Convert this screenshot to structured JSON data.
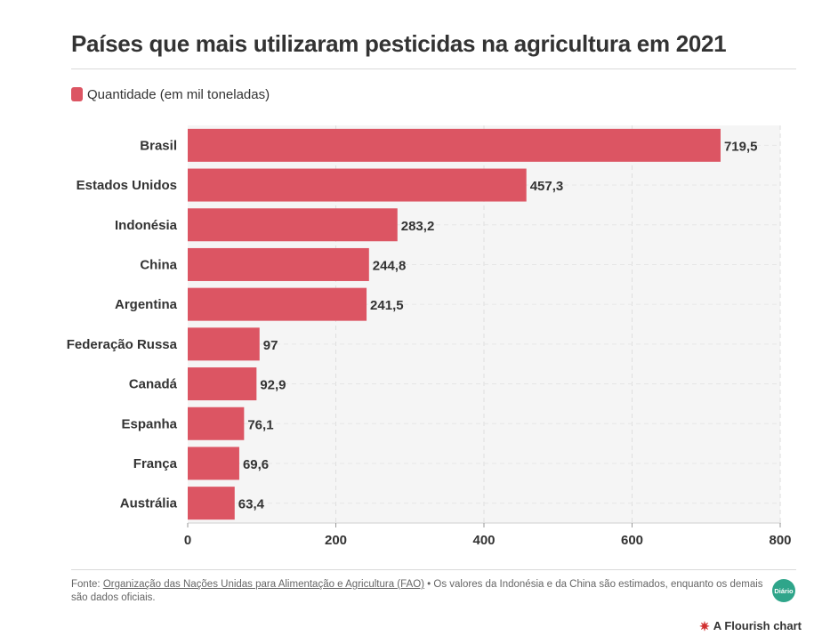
{
  "chart_data": {
    "type": "bar",
    "orientation": "horizontal",
    "title": "Países que mais utilizaram pesticidas na agricultura em 2021",
    "categories": [
      "Brasil",
      "Estados Unidos",
      "Indonésia",
      "China",
      "Argentina",
      "Federação Russa",
      "Canadá",
      "Espanha",
      "França",
      "Austrália"
    ],
    "series": [
      {
        "name": "Quantidade (em mil toneladas)",
        "values": [
          719.5,
          457.3,
          283.2,
          244.8,
          241.5,
          97,
          92.9,
          76.1,
          69.6,
          63.4
        ],
        "labels": [
          "719,5",
          "457,3",
          "283,2",
          "244,8",
          "241,5",
          "97",
          "92,9",
          "76,1",
          "69,6",
          "63,4"
        ],
        "color": "#dc5563"
      }
    ],
    "xlim": [
      0,
      800
    ],
    "xticks": [
      0,
      200,
      400,
      600,
      800
    ],
    "xtick_labels": [
      "0",
      "200",
      "400",
      "600",
      "800"
    ],
    "grid": true,
    "legend_position": "top-left",
    "plot_background": "#f5f5f5"
  },
  "footer": {
    "source_label": "Fonte: ",
    "source_link": "Organização das Nações Unidas para Alimentação e Agricultura (FAO)",
    "note": " • Os valores da Indonésia e da China são estimados, enquanto os demais são dados oficiais."
  },
  "logo": {
    "text": "Diário",
    "icon": "publisher-logo",
    "color": "#2fa58a"
  },
  "credit": {
    "text": "A Flourish chart",
    "icon": "flourish-star-icon",
    "color": "#d13131"
  }
}
